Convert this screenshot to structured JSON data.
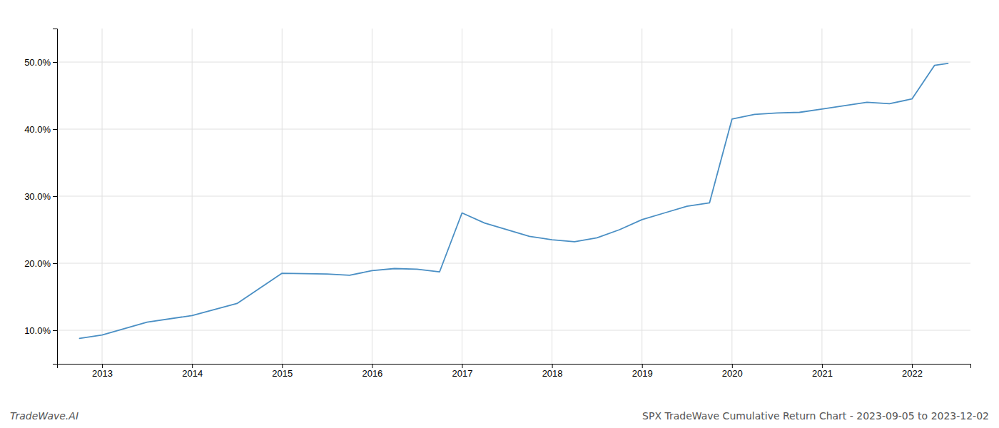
{
  "chart_data": {
    "type": "line",
    "title": "SPX TradeWave Cumulative Return Chart - 2023-09-05 to 2023-12-02",
    "annotations": [
      "TradeWave.AI"
    ],
    "color": "#4a8fc4",
    "grid": true,
    "x": [
      2012.75,
      2013.0,
      2013.5,
      2014.0,
      2014.5,
      2015.0,
      2015.5,
      2015.75,
      2016.0,
      2016.25,
      2016.5,
      2016.75,
      2017.0,
      2017.25,
      2017.75,
      2018.0,
      2018.25,
      2018.5,
      2018.75,
      2019.0,
      2019.25,
      2019.5,
      2019.75,
      2020.0,
      2020.25,
      2020.5,
      2020.75,
      2021.0,
      2021.25,
      2021.5,
      2021.75,
      2022.0,
      2022.25,
      2022.4
    ],
    "values": [
      8.8,
      9.3,
      11.2,
      12.2,
      14.0,
      18.5,
      18.4,
      18.2,
      18.9,
      19.2,
      19.1,
      18.7,
      27.5,
      26.0,
      24.0,
      23.5,
      23.2,
      23.8,
      25.0,
      26.5,
      27.5,
      28.5,
      29.0,
      41.5,
      42.2,
      42.4,
      42.5,
      43.0,
      43.5,
      44.0,
      43.8,
      44.5,
      49.5,
      49.8
    ],
    "xlim": [
      2012.5,
      2022.65
    ],
    "ylim": [
      5.0,
      55.0
    ],
    "xticks": [
      2013,
      2014,
      2015,
      2016,
      2017,
      2018,
      2019,
      2020,
      2021,
      2022
    ],
    "yticks": [
      {
        "value": 10.0,
        "label": "10.0%"
      },
      {
        "value": 20.0,
        "label": "20.0%"
      },
      {
        "value": 30.0,
        "label": "30.0%"
      },
      {
        "value": 40.0,
        "label": "40.0%"
      },
      {
        "value": 50.0,
        "label": "50.0%"
      }
    ]
  }
}
